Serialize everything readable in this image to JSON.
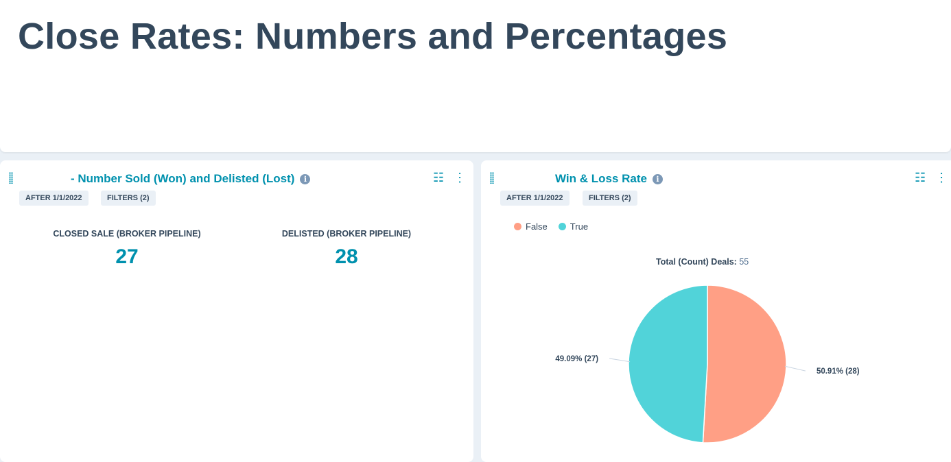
{
  "page": {
    "title": "Close Rates: Numbers and Percentages"
  },
  "card1": {
    "title": "- Number Sold (Won) and Delisted (Lost)",
    "tags": [
      "AFTER 1/1/2022",
      "FILTERS (2)"
    ],
    "kpis": [
      {
        "label": "CLOSED SALE (BROKER PIPELINE)",
        "value": "27"
      },
      {
        "label": "DELISTED (BROKER PIPELINE)",
        "value": "28"
      }
    ]
  },
  "card2": {
    "title": "Win & Loss Rate",
    "tags": [
      "AFTER 1/1/2022",
      "FILTERS (2)"
    ],
    "total_label": "Total (Count) Deals:",
    "total_value": "55"
  },
  "icons": [
    "drag-handle-icon",
    "info-icon",
    "sliders-icon",
    "more-vertical-icon"
  ],
  "chart_data": {
    "type": "pie",
    "legend": "top-left",
    "series": [
      {
        "name": "False",
        "value": 28,
        "percent_label": "50.91% (28)",
        "color": "#ff9f85"
      },
      {
        "name": "True",
        "value": 27,
        "percent_label": "49.09% (27)",
        "color": "#51d3d9"
      }
    ]
  }
}
